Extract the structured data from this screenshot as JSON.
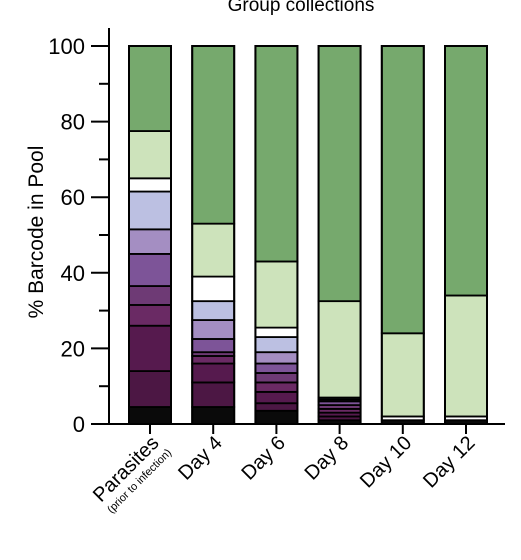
{
  "chart_data": {
    "type": "bar",
    "stacked": true,
    "title": "Group collections",
    "ylabel": "% Barcode in Pool",
    "xlabel": "",
    "ylim": [
      0,
      100
    ],
    "yticks": [
      0,
      20,
      40,
      60,
      80,
      100
    ],
    "categories": [
      {
        "label": "Parasites",
        "sublabel": "(prior to infection)"
      },
      {
        "label": "Day 4",
        "sublabel": ""
      },
      {
        "label": "Day 6",
        "sublabel": ""
      },
      {
        "label": "Day 8",
        "sublabel": ""
      },
      {
        "label": "Day 10",
        "sublabel": ""
      },
      {
        "label": "Day 12",
        "sublabel": ""
      }
    ],
    "stacks": [
      {
        "category": "Parasites",
        "segments": [
          {
            "value": 4.5,
            "color": "#0a0a0a"
          },
          {
            "value": 9.5,
            "color": "#4c1744"
          },
          {
            "value": 12.0,
            "color": "#561a4e"
          },
          {
            "value": 5.5,
            "color": "#6a2a64"
          },
          {
            "value": 5.0,
            "color": "#6e3a75"
          },
          {
            "value": 8.5,
            "color": "#7d5498"
          },
          {
            "value": 6.5,
            "color": "#a48ec2"
          },
          {
            "value": 10.0,
            "color": "#bcc0e2"
          },
          {
            "value": 3.5,
            "color": "#ffffff"
          },
          {
            "value": 12.5,
            "color": "#cde3bb"
          },
          {
            "value": 22.5,
            "color": "#76a96d"
          }
        ]
      },
      {
        "category": "Day 4",
        "segments": [
          {
            "value": 4.5,
            "color": "#0a0a0a"
          },
          {
            "value": 6.5,
            "color": "#4c1744"
          },
          {
            "value": 5.0,
            "color": "#561a4e"
          },
          {
            "value": 2.0,
            "color": "#6a2a64"
          },
          {
            "value": 1.0,
            "color": "#6e3a75"
          },
          {
            "value": 3.5,
            "color": "#7d5498"
          },
          {
            "value": 5.0,
            "color": "#a48ec2"
          },
          {
            "value": 5.0,
            "color": "#bcc0e2"
          },
          {
            "value": 6.5,
            "color": "#ffffff"
          },
          {
            "value": 14.0,
            "color": "#cde3bb"
          },
          {
            "value": 47.0,
            "color": "#76a96d"
          }
        ]
      },
      {
        "category": "Day 6",
        "segments": [
          {
            "value": 3.5,
            "color": "#0a0a0a"
          },
          {
            "value": 2.0,
            "color": "#4c1744"
          },
          {
            "value": 3.0,
            "color": "#561a4e"
          },
          {
            "value": 2.5,
            "color": "#6a2a64"
          },
          {
            "value": 2.5,
            "color": "#6e3a75"
          },
          {
            "value": 2.5,
            "color": "#7d5498"
          },
          {
            "value": 3.0,
            "color": "#a48ec2"
          },
          {
            "value": 4.0,
            "color": "#bcc0e2"
          },
          {
            "value": 2.5,
            "color": "#ffffff"
          },
          {
            "value": 17.5,
            "color": "#cde3bb"
          },
          {
            "value": 57.0,
            "color": "#76a96d"
          }
        ]
      },
      {
        "category": "Day 8",
        "segments": [
          {
            "value": 1.0,
            "color": "#0a0a0a"
          },
          {
            "value": 1.0,
            "color": "#4c1744"
          },
          {
            "value": 1.0,
            "color": "#561a4e"
          },
          {
            "value": 1.0,
            "color": "#6a2a64"
          },
          {
            "value": 1.0,
            "color": "#6e3a75"
          },
          {
            "value": 1.0,
            "color": "#7d5498"
          },
          {
            "value": 0.5,
            "color": "#a48ec2"
          },
          {
            "value": 0.5,
            "color": "#bcc0e2"
          },
          {
            "value": 25.5,
            "color": "#cde3bb"
          },
          {
            "value": 67.5,
            "color": "#76a96d"
          }
        ]
      },
      {
        "category": "Day 10",
        "segments": [
          {
            "value": 1.0,
            "color": "#0a0a0a"
          },
          {
            "value": 1.0,
            "color": "#ffffff"
          },
          {
            "value": 22.0,
            "color": "#cde3bb"
          },
          {
            "value": 76.0,
            "color": "#76a96d"
          }
        ]
      },
      {
        "category": "Day 12",
        "segments": [
          {
            "value": 1.0,
            "color": "#0a0a0a"
          },
          {
            "value": 1.0,
            "color": "#ffffff"
          },
          {
            "value": 32.0,
            "color": "#cde3bb"
          },
          {
            "value": 66.0,
            "color": "#76a96d"
          }
        ]
      }
    ],
    "legend": "none",
    "grid": false
  }
}
